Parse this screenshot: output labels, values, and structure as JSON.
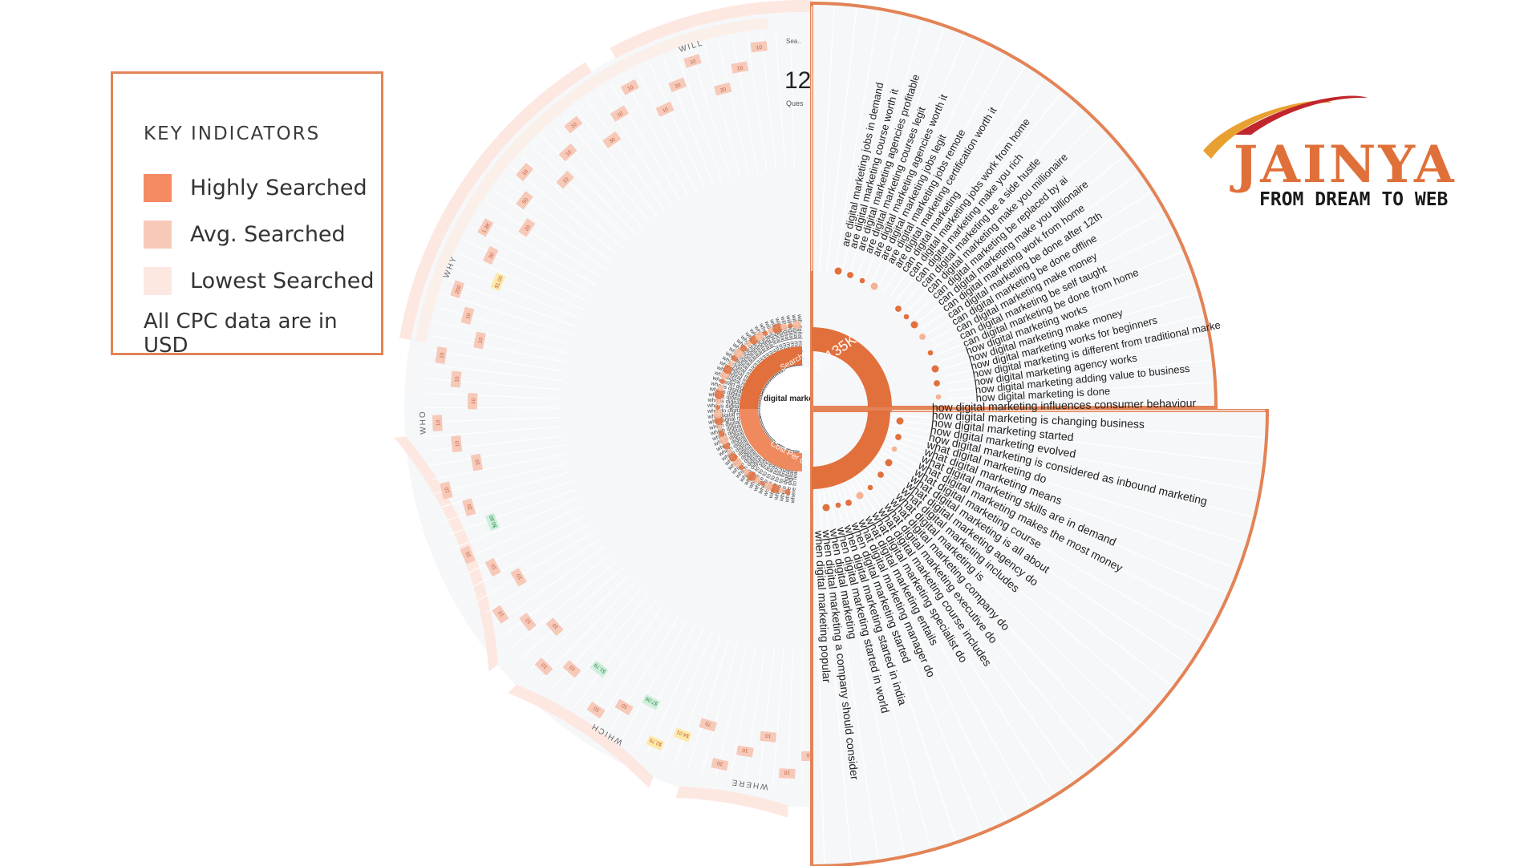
{
  "colors": {
    "accent": "#e2703c",
    "border": "#e38356",
    "high": "#f58b63",
    "avg": "#f6c9b9",
    "low": "#fde8e1",
    "bg_wedge": "#f6f7f9",
    "text": "#333333"
  },
  "legend": {
    "title": "KEY INDICATORS",
    "items": [
      {
        "label": "Highly Searched",
        "color": "#f58b63"
      },
      {
        "label": "Avg. Searched",
        "color": "#f6c9b9"
      },
      {
        "label": "Lowest Searched",
        "color": "#fde8e1"
      }
    ],
    "note": "All CPC data are in USD"
  },
  "logo": {
    "word": "JAINYA",
    "tagline": "FROM DREAM TO WEB"
  },
  "center": {
    "label": "digital marketing",
    "search_volume": "Search Volume: 135K",
    "cost_per_click": "Cost Per Click"
  },
  "header": {
    "small": "Sea..",
    "big": "12",
    "sub": "Ques"
  },
  "group_labels": [
    "WILL",
    "WHY",
    "WHO",
    "WHICH",
    "WHERE"
  ],
  "zoom_top": {
    "queries": [
      "are digital marketing jobs in demand",
      "are digital marketing course worth it",
      "are digital marketing agencies profitable",
      "are digital marketing courses legit",
      "are digital marketing agencies worth it",
      "are digital marketing jobs legit",
      "are digital marketing jobs remote",
      "are digital marketing certification worth it",
      "can digital marketing",
      "can digital marketing jobs work from home",
      "can digital marketing make you rich",
      "can digital marketing be a side hustle",
      "can digital marketing make you millionaire",
      "can digital marketing be replaced by ai",
      "can digital marketing make you billionaire",
      "can digital marketing work from home",
      "can digital marketing be done after 12th",
      "can digital marketing be done offline",
      "can digital marketing make money",
      "can digital marketing be self taught",
      "can digital marketing be done from home",
      "how digital marketing works",
      "how digital marketing make money",
      "how digital marketing works for beginners",
      "how digital marketing is different from traditional marke",
      "how digital marketing agency works",
      "how digital marketing adding value to business",
      "how digital marketing is done"
    ]
  },
  "zoom_bottom": {
    "queries": [
      "how digital marketing influences consumer behaviour",
      "how digital marketing is changing business",
      "how digital marketing started",
      "how digital marketing evolved",
      "how digital marketing is considered as inbound marketing",
      "what digital marketing do",
      "what digital marketing means",
      "what digital marketing skills are in demand",
      "what digital marketing makes the most money",
      "what digital marketing course",
      "what digital marketing is all about",
      "what digital marketing agency do",
      "what digital marketing includes",
      "what digital marketing is",
      "what digital marketing company do",
      "what digital marketing executive do",
      "what digital marketing course includes",
      "what digital marketing specialist do",
      "what digital marketing entails",
      "what digital marketing manager do",
      "when digital marketing started",
      "when digital marketing started in india",
      "when digital marketing started in world",
      "when digital marketing",
      "when digital marketing a company should consider",
      "when digital marketing popular"
    ]
  },
  "small_queries": [
    "will digital marketing grow in future",
    "will digital marketing be replaced by ai",
    "will digital marketing be automated",
    "will digital marketing die",
    "will digital marketing jobs be in demand",
    "will digital marketing be saturated",
    "will digital marketing be replaced",
    "why digital marketing is important",
    "why digital marketing is important for business",
    "why digital marketing is the future",
    "why digital marketing is important for small business",
    "why digital marketing career",
    "why digital marketing is growing",
    "why digital marketing is better than traditional",
    "why digital marketing interview question",
    "why digital marketing is important nowadays",
    "why digital marketing course",
    "why digital marketing is important in tourism",
    "why digital marketing is important for students",
    "who digital marketing is important",
    "who start digital marketing",
    "who is digital marketing strategist",
    "who is digital marketing expert",
    "who is digital marketing specialist",
    "who is digital marketing executive",
    "who is digital marketing manager",
    "who do digital marketing",
    "who digital marketing substitutes",
    "who digital marketing breast milk substitutes",
    "which digital marketing has highest salary",
    "which digital marketing is highest paid",
    "which digital marketing course is best",
    "which digital marketing is best for beginners",
    "which digital marketing job pays the most",
    "which digital marketing is in demand",
    "which digital marketing course is best in india",
    "which digital marketing is best for business",
    "which digital marketing certification is best",
    "which digital marketing tool is best",
    "which digital marketing course is best for beginners",
    "which digital marketing company is best",
    "where to start digital marketing",
    "where to find digital marketing jobs",
    "where to learn digital marketing",
    "where to learn digital marketing for free",
    "where to post digital marketing jobs",
    "where to study digital marketing",
    "where to find digital marketing clients",
    "where digital marketing is used",
    "where digital marketing began",
    "where to learn digital marketing online"
  ],
  "cpc_labels": [
    {
      "text": "10",
      "tone": "avg"
    },
    {
      "text": "10",
      "tone": "avg"
    },
    {
      "text": "20",
      "tone": "avg"
    },
    {
      "text": "10",
      "tone": "avg"
    },
    {
      "text": "20",
      "tone": "avg"
    },
    {
      "text": "10",
      "tone": "avg"
    },
    {
      "text": "10",
      "tone": "avg"
    },
    {
      "text": "10",
      "tone": "avg"
    },
    {
      "text": "30",
      "tone": "avg"
    },
    {
      "text": "10",
      "tone": "avg"
    },
    {
      "text": "10",
      "tone": "avg"
    },
    {
      "text": "10",
      "tone": "avg"
    },
    {
      "text": "10",
      "tone": "avg"
    },
    {
      "text": "50",
      "tone": "avg"
    },
    {
      "text": "20",
      "tone": "avg"
    },
    {
      "text": "1.3K",
      "tone": "avg"
    },
    {
      "text": "30",
      "tone": "avg"
    },
    {
      "text": "$1.00",
      "tone": "yellow"
    },
    {
      "text": "200",
      "tone": "avg"
    },
    {
      "text": "10",
      "tone": "avg"
    },
    {
      "text": "10",
      "tone": "avg"
    },
    {
      "text": "10",
      "tone": "avg"
    },
    {
      "text": "10",
      "tone": "avg"
    },
    {
      "text": "10",
      "tone": "avg"
    },
    {
      "text": "10",
      "tone": "avg"
    },
    {
      "text": "10",
      "tone": "avg"
    },
    {
      "text": "10",
      "tone": "avg"
    },
    {
      "text": "10",
      "tone": "avg"
    },
    {
      "text": "20",
      "tone": "avg"
    },
    {
      "text": "$0.80",
      "tone": "green"
    },
    {
      "text": "10",
      "tone": "avg"
    },
    {
      "text": "10",
      "tone": "avg"
    },
    {
      "text": "10",
      "tone": "avg"
    },
    {
      "text": "10",
      "tone": "avg"
    },
    {
      "text": "10",
      "tone": "avg"
    },
    {
      "text": "10",
      "tone": "avg"
    },
    {
      "text": "10",
      "tone": "avg"
    },
    {
      "text": "10",
      "tone": "avg"
    },
    {
      "text": "$1.79",
      "tone": "green"
    },
    {
      "text": "10",
      "tone": "avg"
    },
    {
      "text": "10",
      "tone": "avg"
    },
    {
      "text": "$7.06",
      "tone": "green"
    },
    {
      "text": "$2.79",
      "tone": "yellow"
    },
    {
      "text": "$4.01",
      "tone": "yellow"
    },
    {
      "text": "70",
      "tone": "avg"
    },
    {
      "text": "20",
      "tone": "avg"
    },
    {
      "text": "10",
      "tone": "avg"
    },
    {
      "text": "10",
      "tone": "avg"
    },
    {
      "text": "10",
      "tone": "avg"
    },
    {
      "text": "10",
      "tone": "avg"
    }
  ]
}
